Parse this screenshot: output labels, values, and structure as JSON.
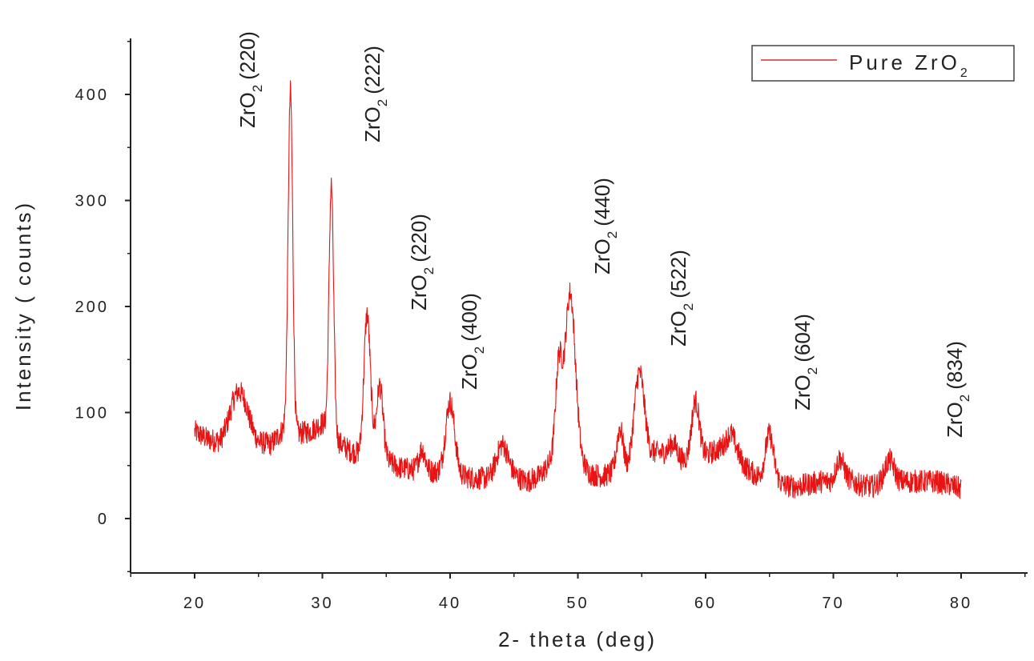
{
  "chart_data": {
    "type": "line",
    "xlabel": "2- theta (deg)",
    "ylabel": "Intensity ( counts)",
    "xlim": [
      15,
      85
    ],
    "ylim": [
      -50,
      450
    ],
    "xticks": [
      20,
      30,
      40,
      50,
      60,
      70,
      80
    ],
    "yticks": [
      0,
      100,
      200,
      300,
      400
    ],
    "grid": false,
    "legend_position": "top-right",
    "series_color": "#e81414",
    "series": [
      {
        "name": "Pure ZrO2",
        "x_range": [
          20,
          80
        ],
        "baseline": [
          [
            20,
            82
          ],
          [
            21,
            75
          ],
          [
            22,
            72
          ],
          [
            23,
            82
          ],
          [
            24,
            88
          ],
          [
            25,
            72
          ],
          [
            26,
            70
          ],
          [
            27,
            85
          ],
          [
            28,
            80
          ],
          [
            29,
            82
          ],
          [
            30,
            90
          ],
          [
            31,
            75
          ],
          [
            32,
            65
          ],
          [
            33,
            60
          ],
          [
            34,
            65
          ],
          [
            35,
            55
          ],
          [
            36,
            48
          ],
          [
            37,
            46
          ],
          [
            38,
            45
          ],
          [
            39,
            44
          ],
          [
            40,
            45
          ],
          [
            41,
            40
          ],
          [
            42,
            38
          ],
          [
            43,
            38
          ],
          [
            44,
            45
          ],
          [
            45,
            40
          ],
          [
            46,
            35
          ],
          [
            47,
            40
          ],
          [
            48,
            55
          ],
          [
            49,
            60
          ],
          [
            50,
            55
          ],
          [
            51,
            42
          ],
          [
            52,
            40
          ],
          [
            53,
            45
          ],
          [
            54,
            45
          ],
          [
            55,
            55
          ],
          [
            56,
            62
          ],
          [
            57,
            62
          ],
          [
            58,
            55
          ],
          [
            59,
            55
          ],
          [
            60,
            60
          ],
          [
            61,
            65
          ],
          [
            62,
            65
          ],
          [
            63,
            50
          ],
          [
            64,
            40
          ],
          [
            65,
            45
          ],
          [
            66,
            32
          ],
          [
            67,
            30
          ],
          [
            68,
            32
          ],
          [
            69,
            35
          ],
          [
            70,
            35
          ],
          [
            71,
            38
          ],
          [
            72,
            32
          ],
          [
            73,
            30
          ],
          [
            74,
            35
          ],
          [
            75,
            35
          ],
          [
            76,
            35
          ],
          [
            77,
            35
          ],
          [
            78,
            35
          ],
          [
            79,
            32
          ],
          [
            80,
            28
          ]
        ],
        "peaks": [
          {
            "x": 23.4,
            "height": 35,
            "width": 0.6
          },
          {
            "x": 27.5,
            "height": 320,
            "width": 0.18
          },
          {
            "x": 30.7,
            "height": 235,
            "width": 0.18
          },
          {
            "x": 33.5,
            "height": 130,
            "width": 0.25
          },
          {
            "x": 34.5,
            "height": 65,
            "width": 0.25
          },
          {
            "x": 37.8,
            "height": 20,
            "width": 0.25
          },
          {
            "x": 40.0,
            "height": 65,
            "width": 0.35
          },
          {
            "x": 44.1,
            "height": 25,
            "width": 0.45
          },
          {
            "x": 48.5,
            "height": 85,
            "width": 0.25
          },
          {
            "x": 49.4,
            "height": 155,
            "width": 0.4
          },
          {
            "x": 53.3,
            "height": 40,
            "width": 0.25
          },
          {
            "x": 54.8,
            "height": 85,
            "width": 0.4
          },
          {
            "x": 57.5,
            "height": 12,
            "width": 0.3
          },
          {
            "x": 59.2,
            "height": 55,
            "width": 0.3
          },
          {
            "x": 62.0,
            "height": 15,
            "width": 0.4
          },
          {
            "x": 65.0,
            "height": 35,
            "width": 0.3
          },
          {
            "x": 70.5,
            "height": 20,
            "width": 0.3
          },
          {
            "x": 74.4,
            "height": 20,
            "width": 0.35
          }
        ]
      }
    ]
  },
  "legend": {
    "entry_prefix": "Pure ZrO",
    "entry_subscript": "2"
  },
  "peak_labels": [
    {
      "formula": "ZrO",
      "sub": "2",
      "hkl": "(220)"
    },
    {
      "formula": "ZrO",
      "sub": "2",
      "hkl": "(222)"
    },
    {
      "formula": "ZrO",
      "sub": "2",
      "hkl": "(220)"
    },
    {
      "formula": "ZrO",
      "sub": "2",
      "hkl": "(400)"
    },
    {
      "formula": "ZrO",
      "sub": "2",
      "hkl": "(440)"
    },
    {
      "formula": "ZrO",
      "sub": "2",
      "hkl": "(522)"
    },
    {
      "formula": "ZrO",
      "sub": "2",
      "hkl": "(604)"
    },
    {
      "formula": "ZrO",
      "sub": "2",
      "hkl": "(834)"
    }
  ]
}
